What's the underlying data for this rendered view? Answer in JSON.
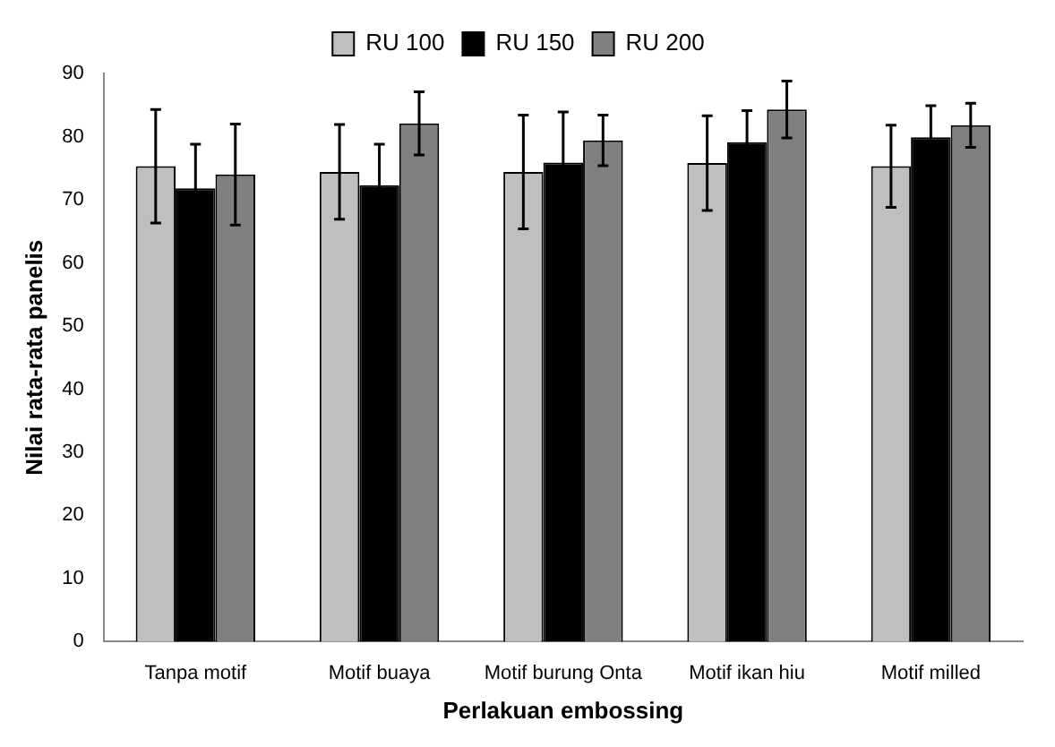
{
  "chart_data": {
    "type": "bar",
    "xlabel": "Perlakuan embossing",
    "ylabel": "Nilai rata-rata panelis",
    "categories": [
      "Tanpa motif",
      "Motif buaya",
      "Motif burung Onta",
      "Motif ikan hiu",
      "Motif milled"
    ],
    "series": [
      {
        "name": "RU 100",
        "color": "#bfbfbf",
        "values": [
          75.3,
          74.4,
          74.4,
          75.8,
          75.3
        ],
        "errors": [
          9,
          7.5,
          9,
          7.5,
          6.5
        ]
      },
      {
        "name": "RU 150",
        "color": "#000000",
        "values": [
          71.8,
          72.3,
          75.9,
          79.1,
          79.9
        ],
        "errors": [
          7,
          6.5,
          8,
          5,
          5
        ]
      },
      {
        "name": "RU 200",
        "color": "#808080",
        "values": [
          74,
          82.1,
          79.4,
          84.3,
          81.8
        ],
        "errors": [
          8,
          5,
          4,
          4.5,
          3.5
        ]
      }
    ],
    "ylim": [
      0,
      90
    ],
    "yticks": [
      0,
      10,
      20,
      30,
      40,
      50,
      60,
      70,
      80,
      90
    ],
    "grid": false,
    "legend": "top"
  }
}
